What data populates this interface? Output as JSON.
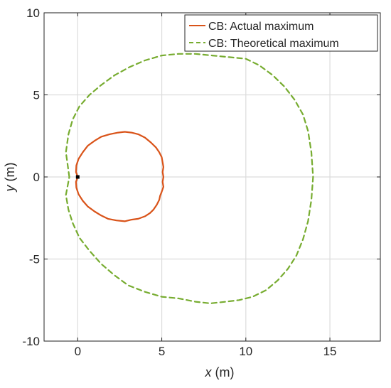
{
  "chart_data": {
    "type": "line",
    "title": "",
    "xlabel": "x (m)",
    "ylabel": "y (m)",
    "xlabel_var": "x",
    "xlabel_unit": " (m)",
    "ylabel_var": "y",
    "ylabel_unit": " (m)",
    "xlim": [
      -2,
      18
    ],
    "ylim": [
      -10,
      10
    ],
    "xticks": [
      0,
      5,
      10,
      15
    ],
    "yticks": [
      -10,
      -5,
      0,
      5,
      10
    ],
    "xtick_labels": [
      "0",
      "5",
      "10",
      "15"
    ],
    "ytick_labels": [
      "-10",
      "-5",
      "0",
      "5",
      "10"
    ],
    "grid": true,
    "legend": "top-right",
    "marker": {
      "x": 0,
      "y": 0,
      "color": "#000000"
    },
    "series": [
      {
        "name": "CB: Actual maximum",
        "color": "#D95319",
        "style": "solid",
        "x": [
          0,
          -0.1,
          -0.08,
          0.05,
          0.3,
          0.6,
          1.0,
          1.4,
          1.9,
          2.4,
          2.8,
          3.2,
          3.6,
          4.0,
          4.35,
          4.65,
          4.85,
          5.0,
          5.05,
          5.1,
          5.05,
          5.1,
          5.05,
          5.1,
          5.0,
          4.9,
          4.85,
          4.7,
          4.5,
          4.3,
          4.0,
          3.6,
          3.2,
          2.8,
          2.3,
          1.8,
          1.4,
          1.0,
          0.6,
          0.3,
          0.05,
          -0.08,
          -0.1,
          0
        ],
        "y": [
          0,
          0.3,
          0.7,
          1.1,
          1.5,
          1.9,
          2.2,
          2.45,
          2.6,
          2.7,
          2.75,
          2.7,
          2.6,
          2.4,
          2.1,
          1.8,
          1.5,
          1.2,
          0.9,
          0.6,
          0.3,
          0,
          -0.3,
          -0.6,
          -0.9,
          -1.15,
          -1.4,
          -1.7,
          -2.0,
          -2.2,
          -2.4,
          -2.55,
          -2.6,
          -2.7,
          -2.65,
          -2.55,
          -2.35,
          -2.1,
          -1.8,
          -1.45,
          -1.05,
          -0.65,
          -0.3,
          0
        ]
      },
      {
        "name": "CB: Theoretical maximum",
        "color": "#77AC30",
        "style": "dashed",
        "x": [
          -0.5,
          -0.7,
          -0.55,
          -0.3,
          0.1,
          0.7,
          1.4,
          2.2,
          3.1,
          4.0,
          5.0,
          6.0,
          7.0,
          8.0,
          9.0,
          10.0,
          10.8,
          11.6,
          12.3,
          12.9,
          13.4,
          13.7,
          13.9,
          14.0,
          13.9,
          13.7,
          13.4,
          13.0,
          12.5,
          11.9,
          11.2,
          10.4,
          9.6,
          8.8,
          7.9,
          7.0,
          6.0,
          5.0,
          4.0,
          3.0,
          2.2,
          1.4,
          0.7,
          0.1,
          -0.3,
          -0.55,
          -0.7,
          -0.5
        ],
        "y": [
          0,
          1.5,
          2.6,
          3.5,
          4.3,
          5.0,
          5.6,
          6.2,
          6.7,
          7.1,
          7.4,
          7.5,
          7.5,
          7.4,
          7.3,
          7.2,
          6.8,
          6.2,
          5.5,
          4.7,
          3.8,
          2.8,
          1.5,
          0,
          -1.4,
          -2.7,
          -3.8,
          -4.8,
          -5.6,
          -6.3,
          -6.9,
          -7.3,
          -7.5,
          -7.6,
          -7.7,
          -7.6,
          -7.4,
          -7.3,
          -7.0,
          -6.6,
          -6.0,
          -5.3,
          -4.5,
          -3.7,
          -2.8,
          -2.0,
          -1.1,
          0
        ]
      }
    ]
  }
}
